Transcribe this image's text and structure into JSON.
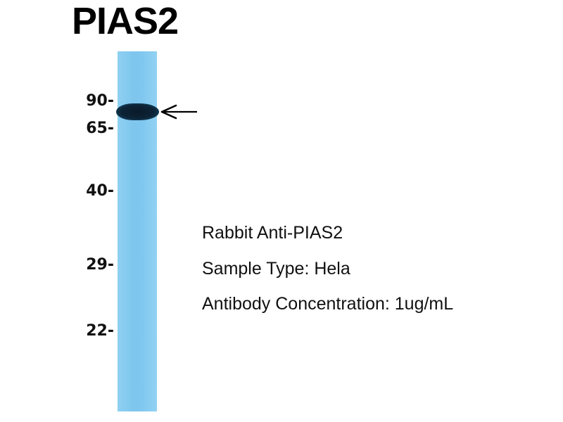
{
  "title": "PIAS2",
  "markers": [
    "90-",
    "65-",
    "40-",
    "29-",
    "22-"
  ],
  "info": {
    "antibody": "Rabbit Anti-PIAS2",
    "sample": "Sample Type: Hela",
    "concentration": "Antibody Concentration: 1ug/mL"
  },
  "colors": {
    "lane": "#7fc7ef",
    "band": "#0c2436"
  }
}
